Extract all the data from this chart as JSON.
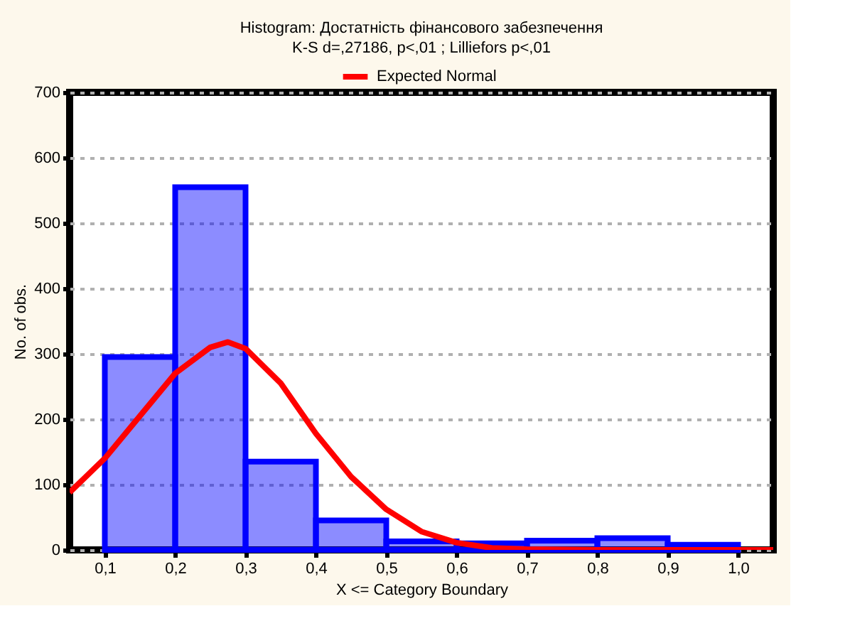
{
  "chart_data": {
    "type": "histogram",
    "title": "Histogram: Достатність фінансового забезпечення",
    "subtitle": "K-S d=,27186, p<,01 ; Lilliefors p<,01",
    "xlabel": "X <= Category Boundary",
    "ylabel": "No. of obs.",
    "bins": [
      0.1,
      0.2,
      0.3,
      0.4,
      0.5,
      0.6,
      0.7,
      0.8,
      0.9,
      1.0
    ],
    "values": [
      295,
      555,
      135,
      45,
      13,
      10,
      14,
      18,
      8
    ],
    "series": [
      {
        "name": "Expected Normal",
        "type": "line",
        "color": "#ff0000",
        "x": [
          0.05,
          0.1,
          0.15,
          0.2,
          0.25,
          0.275,
          0.3,
          0.35,
          0.4,
          0.45,
          0.5,
          0.55,
          0.6,
          0.65,
          0.7,
          0.8,
          0.9,
          1.0,
          1.05
        ],
        "values": [
          88,
          140,
          205,
          270,
          310,
          318,
          308,
          255,
          178,
          112,
          62,
          28,
          11,
          3,
          1,
          0,
          0,
          0,
          0
        ]
      }
    ],
    "color": "#0000ff",
    "xlim": [
      0.05,
      1.05
    ],
    "ylim": [
      0,
      700
    ],
    "xticks": [
      {
        "value": 0.1,
        "label": "0,1"
      },
      {
        "value": 0.2,
        "label": "0,2"
      },
      {
        "value": 0.3,
        "label": "0,3"
      },
      {
        "value": 0.4,
        "label": "0,4"
      },
      {
        "value": 0.5,
        "label": "0,5"
      },
      {
        "value": 0.6,
        "label": "0,6"
      },
      {
        "value": 0.7,
        "label": "0,7"
      },
      {
        "value": 0.8,
        "label": "0,8"
      },
      {
        "value": 0.9,
        "label": "0,9"
      },
      {
        "value": 1.0,
        "label": "1,0"
      }
    ],
    "yticks": [
      0,
      100,
      200,
      300,
      400,
      500,
      600,
      700
    ],
    "grid": "y",
    "legend": "top"
  }
}
